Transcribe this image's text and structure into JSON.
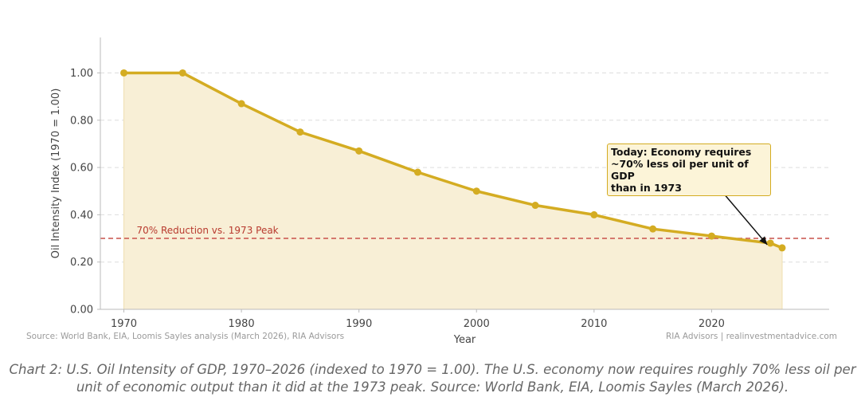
{
  "chart_data": {
    "type": "area",
    "x": [
      1970,
      1975,
      1980,
      1985,
      1990,
      1995,
      2000,
      2005,
      2010,
      2015,
      2020,
      2025,
      2026
    ],
    "series": [
      {
        "values": [
          1.0,
          1.0,
          0.87,
          0.75,
          0.67,
          0.58,
          0.5,
          0.44,
          0.4,
          0.34,
          0.31,
          0.28,
          0.26
        ]
      }
    ],
    "xlabel": "Year",
    "ylabel": "Oil Intensity Index (1970 = 1.00)",
    "xlim": [
      1968,
      2030
    ],
    "ylim": [
      0,
      1.15
    ],
    "x_ticks": [
      "1970",
      "1980",
      "1990",
      "2000",
      "2010",
      "2020"
    ],
    "y_ticks": [
      "0.00",
      "0.20",
      "0.40",
      "0.60",
      "0.80",
      "1.00"
    ],
    "y_grid": true,
    "reference_line": {
      "y": 0.3,
      "label": "70% Reduction vs. 1973 Peak"
    },
    "annotation": {
      "lines": [
        "Today: Economy requires",
        "~70% less oil per unit of GDP",
        "than in 1973"
      ],
      "target_x": 2025,
      "target_y": 0.27
    },
    "colors": {
      "line": "#d4ac22",
      "fill": "#f8efd6",
      "reference": "#c9504a",
      "grid": "#dddddd",
      "axis": "#bbbbbb"
    },
    "source_left": "Source: World Bank, EIA, Loomis Sayles analysis (March 2026), RIA Advisors",
    "source_right": "RIA Advisors | realinvestmentadvice.com"
  },
  "caption": "Chart 2: U.S. Oil Intensity of GDP, 1970–2026 (indexed to 1970 = 1.00). The U.S. economy now requires roughly 70% less oil per unit of economic output than it did at the 1973 peak. Source: World Bank, EIA, Loomis Sayles (March 2026)."
}
